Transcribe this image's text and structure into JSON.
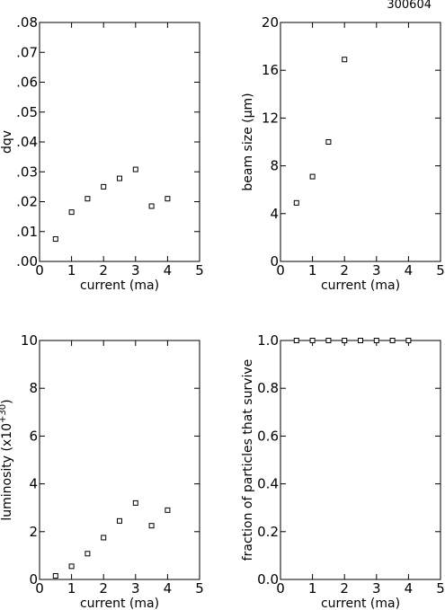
{
  "figure_id": "300604",
  "chart_data": [
    {
      "type": "scatter",
      "xlabel": "current (ma)",
      "ylabel": "dqv",
      "xlim": [
        0,
        5
      ],
      "ylim": [
        0,
        0.08
      ],
      "x_ticks": [
        0,
        1,
        2,
        3,
        4,
        5
      ],
      "x_tick_labels": [
        "0",
        "1",
        "2",
        "3",
        "4",
        "5"
      ],
      "y_ticks": [
        0,
        0.01,
        0.02,
        0.03,
        0.04,
        0.05,
        0.06,
        0.07,
        0.08
      ],
      "y_tick_labels": [
        ".00",
        ".01",
        ".02",
        ".03",
        ".04",
        ".05",
        ".06",
        ".07",
        ".08"
      ],
      "x": [
        0.5,
        1.0,
        1.5,
        2.0,
        2.5,
        3.0,
        3.5,
        4.0
      ],
      "y": [
        0.0075,
        0.0165,
        0.021,
        0.025,
        0.0278,
        0.0308,
        0.0185,
        0.021
      ],
      "grid": false
    },
    {
      "type": "scatter",
      "xlabel": "current (ma)",
      "ylabel": "beam size (μm)",
      "xlim": [
        0,
        5
      ],
      "ylim": [
        0,
        20
      ],
      "x_ticks": [
        0,
        1,
        2,
        3,
        4,
        5
      ],
      "x_tick_labels": [
        "0",
        "1",
        "2",
        "3",
        "4",
        "5"
      ],
      "y_ticks": [
        0,
        4,
        8,
        12,
        16,
        20
      ],
      "y_tick_labels": [
        "0",
        "4",
        "8",
        "12",
        "16",
        "20"
      ],
      "x": [
        0.5,
        1.0,
        1.5,
        2.0
      ],
      "y": [
        4.9,
        7.1,
        10.0,
        16.9
      ],
      "grid": false
    },
    {
      "type": "scatter",
      "xlabel": "current (ma)",
      "ylabel": "luminosity",
      "ylabel_unit": "(x10",
      "ylabel_unit_sup": "+30",
      "ylabel_unit_end": ")",
      "xlim": [
        0,
        5
      ],
      "ylim": [
        0,
        10
      ],
      "x_ticks": [
        0,
        1,
        2,
        3,
        4,
        5
      ],
      "x_tick_labels": [
        "0",
        "1",
        "2",
        "3",
        "4",
        "5"
      ],
      "y_ticks": [
        0,
        2,
        4,
        6,
        8,
        10
      ],
      "y_tick_labels": [
        "0",
        "2",
        "4",
        "6",
        "8",
        "10"
      ],
      "x": [
        0.5,
        1.0,
        1.5,
        2.0,
        2.5,
        3.0,
        3.5,
        4.0
      ],
      "y": [
        0.15,
        0.55,
        1.08,
        1.75,
        2.45,
        3.2,
        2.25,
        2.9
      ],
      "grid": false
    },
    {
      "type": "scatter",
      "xlabel": "current (ma)",
      "ylabel": "fraction of particles that survive",
      "xlim": [
        0,
        5
      ],
      "ylim": [
        0,
        1.0
      ],
      "x_ticks": [
        0,
        1,
        2,
        3,
        4,
        5
      ],
      "x_tick_labels": [
        "0",
        "1",
        "2",
        "3",
        "4",
        "5"
      ],
      "y_ticks": [
        0,
        0.2,
        0.4,
        0.6,
        0.8,
        1.0
      ],
      "y_tick_labels": [
        "0.0",
        "0.2",
        "0.4",
        "0.6",
        "0.8",
        "1.0"
      ],
      "x": [
        0.5,
        1.0,
        1.5,
        2.0,
        2.5,
        3.0,
        3.5,
        4.0
      ],
      "y": [
        1.0,
        1.0,
        1.0,
        1.0,
        1.0,
        1.0,
        1.0,
        1.0
      ],
      "grid": false
    }
  ]
}
